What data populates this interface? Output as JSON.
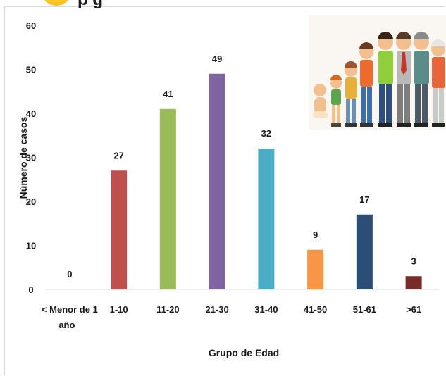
{
  "header": {
    "partial_title": "p      g"
  },
  "chart_data": {
    "type": "bar",
    "title": "",
    "xlabel": "Grupo de Edad",
    "ylabel": "Número de casos",
    "ylim": [
      0,
      60
    ],
    "yticks": [
      0,
      10,
      20,
      30,
      40,
      50,
      60
    ],
    "grid": false,
    "legend": "none",
    "categories": [
      [
        "< Menor de 1",
        "año"
      ],
      [
        "1-10"
      ],
      [
        "11-20"
      ],
      [
        "21-30"
      ],
      [
        "31-40"
      ],
      [
        "41-50"
      ],
      [
        "51-61"
      ],
      [
        ">61"
      ]
    ],
    "values": [
      0,
      27,
      41,
      49,
      32,
      9,
      17,
      3
    ],
    "colors": [
      "#4f81bd",
      "#c0504d",
      "#9bbb59",
      "#8064a2",
      "#4bacc6",
      "#f79646",
      "#2c4d75",
      "#772c2a"
    ]
  }
}
